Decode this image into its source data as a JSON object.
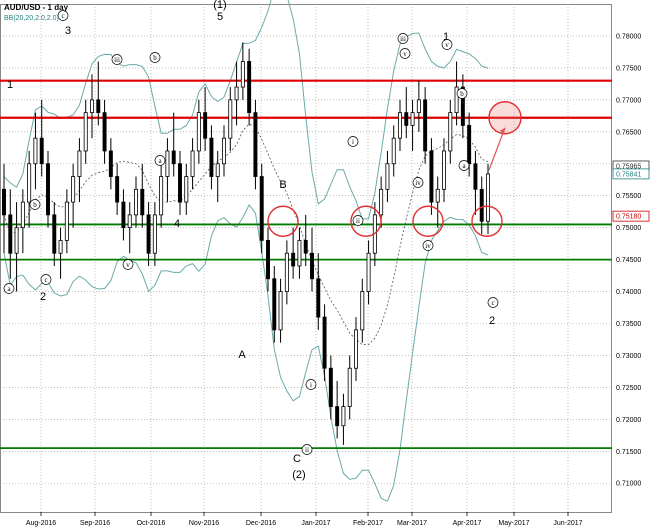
{
  "header": {
    "title": "AUD/USD - 1 day",
    "indicator": "BB(20,20,2.0,2.0)"
  },
  "chart_data": {
    "type": "candlestick",
    "symbol": "AUD/USD",
    "timeframe": "1 day",
    "ylim": [
      0.7055,
      0.785
    ],
    "y_ticks": [
      "0.78000",
      "0.77500",
      "0.77000",
      "0.76500",
      "0.76000",
      "0.75500",
      "0.75000",
      "0.74500",
      "0.74000",
      "0.73500",
      "0.73000",
      "0.72500",
      "0.72000",
      "0.71500",
      "0.71000"
    ],
    "x_ticks": [
      "Aug-2016",
      "Sep-2016",
      "Oct-2016",
      "Nov-2016",
      "Dec-2016",
      "Jan-2017",
      "Feb-2017",
      "Mar-2017",
      "Apr-2017",
      "May-2017",
      "Jun-2017"
    ],
    "grid": true,
    "price_tags": [
      {
        "text": "0.75965",
        "value": 0.75965,
        "color": "#333333"
      },
      {
        "text": "0.75841",
        "value": 0.75841,
        "color": "#1f7f7f"
      },
      {
        "text": "0.75180",
        "value": 0.7518,
        "color": "#cc0000"
      }
    ],
    "horizontal_levels": [
      {
        "value": 0.773,
        "color": "#e00000",
        "kind": "resistance"
      },
      {
        "value": 0.7672,
        "color": "#e00000",
        "kind": "resistance"
      },
      {
        "value": 0.7505,
        "color": "#007a00",
        "kind": "support"
      },
      {
        "value": 0.745,
        "color": "#007a00",
        "kind": "support"
      },
      {
        "value": 0.7155,
        "color": "#007a00",
        "kind": "support"
      }
    ],
    "wave_labels": [
      {
        "text": "(1)",
        "style": "plain"
      },
      {
        "text": "5",
        "style": "plain"
      },
      {
        "text": "3",
        "style": "plain"
      },
      {
        "text": "1",
        "style": "plain"
      },
      {
        "text": "1",
        "style": "plain"
      },
      {
        "text": "2",
        "style": "plain"
      },
      {
        "text": "4",
        "style": "plain"
      },
      {
        "text": "A",
        "style": "plain"
      },
      {
        "text": "B",
        "style": "plain"
      },
      {
        "text": "C",
        "style": "plain"
      },
      {
        "text": "(2)",
        "style": "plain"
      },
      {
        "text": "2",
        "style": "plain"
      },
      {
        "text": "c",
        "style": "circle"
      },
      {
        "text": "ii",
        "style": "circle"
      },
      {
        "text": "i",
        "style": "circle"
      },
      {
        "text": "iii",
        "style": "circle"
      },
      {
        "text": "v",
        "style": "circle"
      },
      {
        "text": "iv",
        "style": "circle"
      },
      {
        "text": "a",
        "style": "circle"
      },
      {
        "text": "b",
        "style": "circle"
      },
      {
        "text": "ii",
        "style": "circle"
      },
      {
        "text": "i",
        "style": "circle"
      },
      {
        "text": "iv",
        "style": "circle"
      },
      {
        "text": "v",
        "style": "circle"
      },
      {
        "text": "a",
        "style": "circle"
      },
      {
        "text": "b",
        "style": "circle"
      },
      {
        "text": "c",
        "style": "circle"
      },
      {
        "text": "c",
        "style": "circle"
      },
      {
        "text": "iii",
        "style": "circle"
      },
      {
        "text": "v",
        "style": "circle"
      },
      {
        "text": "b",
        "style": "circle"
      },
      {
        "text": "a",
        "style": "circle"
      }
    ],
    "circled_zones": [
      0.751,
      0.751,
      0.751,
      0.751,
      0.7672
    ],
    "candles_ohlc": [
      [
        0.756,
        0.76,
        0.746,
        0.752
      ],
      [
        0.752,
        0.756,
        0.742,
        0.746
      ],
      [
        0.746,
        0.754,
        0.74,
        0.75
      ],
      [
        0.75,
        0.756,
        0.746,
        0.754
      ],
      [
        0.754,
        0.762,
        0.75,
        0.76
      ],
      [
        0.76,
        0.768,
        0.756,
        0.764
      ],
      [
        0.764,
        0.77,
        0.758,
        0.76
      ],
      [
        0.76,
        0.762,
        0.75,
        0.752
      ],
      [
        0.752,
        0.754,
        0.744,
        0.746
      ],
      [
        0.746,
        0.75,
        0.742,
        0.748
      ],
      [
        0.748,
        0.756,
        0.746,
        0.754
      ],
      [
        0.754,
        0.76,
        0.75,
        0.758
      ],
      [
        0.758,
        0.764,
        0.754,
        0.762
      ],
      [
        0.762,
        0.77,
        0.76,
        0.768
      ],
      [
        0.768,
        0.774,
        0.764,
        0.77
      ],
      [
        0.77,
        0.776,
        0.766,
        0.768
      ],
      [
        0.768,
        0.77,
        0.76,
        0.762
      ],
      [
        0.762,
        0.764,
        0.756,
        0.758
      ],
      [
        0.758,
        0.76,
        0.752,
        0.754
      ],
      [
        0.754,
        0.756,
        0.748,
        0.75
      ],
      [
        0.75,
        0.754,
        0.746,
        0.752
      ],
      [
        0.752,
        0.758,
        0.75,
        0.756
      ],
      [
        0.756,
        0.76,
        0.75,
        0.752
      ],
      [
        0.752,
        0.754,
        0.744,
        0.746
      ],
      [
        0.746,
        0.754,
        0.744,
        0.752
      ],
      [
        0.752,
        0.76,
        0.75,
        0.758
      ],
      [
        0.758,
        0.764,
        0.754,
        0.762
      ],
      [
        0.762,
        0.768,
        0.758,
        0.76
      ],
      [
        0.76,
        0.762,
        0.752,
        0.754
      ],
      [
        0.754,
        0.76,
        0.752,
        0.758
      ],
      [
        0.758,
        0.764,
        0.756,
        0.762
      ],
      [
        0.762,
        0.77,
        0.76,
        0.768
      ],
      [
        0.768,
        0.772,
        0.762,
        0.764
      ],
      [
        0.764,
        0.766,
        0.756,
        0.758
      ],
      [
        0.758,
        0.762,
        0.754,
        0.76
      ],
      [
        0.76,
        0.766,
        0.758,
        0.764
      ],
      [
        0.764,
        0.772,
        0.762,
        0.77
      ],
      [
        0.77,
        0.776,
        0.766,
        0.772
      ],
      [
        0.772,
        0.779,
        0.77,
        0.776
      ],
      [
        0.776,
        0.778,
        0.766,
        0.768
      ],
      [
        0.768,
        0.77,
        0.756,
        0.758
      ],
      [
        0.758,
        0.76,
        0.746,
        0.748
      ],
      [
        0.748,
        0.75,
        0.74,
        0.742
      ],
      [
        0.742,
        0.744,
        0.732,
        0.734
      ],
      [
        0.734,
        0.742,
        0.732,
        0.74
      ],
      [
        0.74,
        0.748,
        0.738,
        0.746
      ],
      [
        0.746,
        0.75,
        0.742,
        0.744
      ],
      [
        0.744,
        0.75,
        0.742,
        0.748
      ],
      [
        0.748,
        0.752,
        0.744,
        0.746
      ],
      [
        0.746,
        0.75,
        0.74,
        0.742
      ],
      [
        0.742,
        0.746,
        0.734,
        0.736
      ],
      [
        0.736,
        0.738,
        0.726,
        0.728
      ],
      [
        0.728,
        0.73,
        0.72,
        0.722
      ],
      [
        0.722,
        0.726,
        0.717,
        0.719
      ],
      [
        0.719,
        0.724,
        0.716,
        0.722
      ],
      [
        0.722,
        0.73,
        0.72,
        0.728
      ],
      [
        0.728,
        0.736,
        0.726,
        0.734
      ],
      [
        0.734,
        0.742,
        0.732,
        0.74
      ],
      [
        0.74,
        0.748,
        0.738,
        0.746
      ],
      [
        0.746,
        0.754,
        0.744,
        0.752
      ],
      [
        0.752,
        0.758,
        0.75,
        0.756
      ],
      [
        0.756,
        0.762,
        0.754,
        0.76
      ],
      [
        0.76,
        0.766,
        0.758,
        0.764
      ],
      [
        0.764,
        0.77,
        0.762,
        0.768
      ],
      [
        0.768,
        0.772,
        0.764,
        0.766
      ],
      [
        0.766,
        0.77,
        0.762,
        0.768
      ],
      [
        0.768,
        0.773,
        0.765,
        0.77
      ],
      [
        0.77,
        0.772,
        0.76,
        0.762
      ],
      [
        0.762,
        0.764,
        0.752,
        0.754
      ],
      [
        0.754,
        0.758,
        0.75,
        0.756
      ],
      [
        0.756,
        0.764,
        0.754,
        0.762
      ],
      [
        0.762,
        0.77,
        0.76,
        0.768
      ],
      [
        0.768,
        0.776,
        0.766,
        0.772
      ],
      [
        0.772,
        0.774,
        0.764,
        0.766
      ],
      [
        0.766,
        0.768,
        0.758,
        0.76
      ],
      [
        0.76,
        0.762,
        0.752,
        0.756
      ],
      [
        0.756,
        0.758,
        0.749,
        0.751
      ],
      [
        0.751,
        0.76,
        0.749,
        0.7584
      ]
    ]
  },
  "projection_arrow": {
    "from": 0.759,
    "to": 0.7672,
    "color": "#e05555"
  }
}
